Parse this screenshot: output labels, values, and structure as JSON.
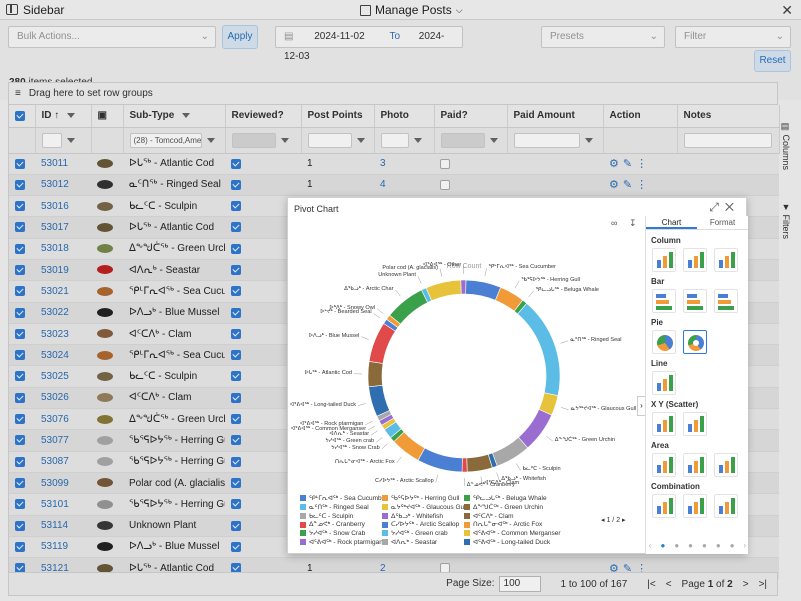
{
  "topbar": {
    "sidebar_label": "Sidebar",
    "title": "Manage Posts"
  },
  "toolbar": {
    "bulk_placeholder": "Bulk Actions...",
    "apply_label": "Apply",
    "date_from": "2024-11-02",
    "date_to_label": "To",
    "date_to": "2024-12-03",
    "presets_placeholder": "Presets",
    "filter_placeholder": "Filter",
    "reset_label": "Reset",
    "count_number": "280",
    "count_text": "items selected"
  },
  "grid": {
    "group_hint": "Drag here to set row groups",
    "headers": {
      "id": "ID",
      "subtype": "Sub-Type",
      "reviewed": "Reviewed?",
      "points": "Post Points",
      "photo": "Photo",
      "paid": "Paid?",
      "amount": "Paid Amount",
      "action": "Action",
      "notes": "Notes"
    },
    "subtype_filter": "(28) - Tomcod,Americ",
    "rows": [
      {
        "id": "53011",
        "subtype": "ᐅᒐᖅ - Atlantic Cod",
        "points": "1",
        "photo": "3",
        "paid": false,
        "action": true,
        "color": "#6b5a3a"
      },
      {
        "id": "53012",
        "subtype": "ᓇᑦᑎᖅ - Ringed Seal",
        "points": "1",
        "photo": "4",
        "paid": false,
        "action": true,
        "color": "#333333"
      },
      {
        "id": "53016",
        "subtype": "ᑲᓚᑦᑕ - Sculpin",
        "points": "",
        "photo": "",
        "paid": false,
        "action": false,
        "color": "#7a6a4a"
      },
      {
        "id": "53017",
        "subtype": "ᐅᒐᖅ - Atlantic Cod",
        "points": "",
        "photo": "",
        "paid": false,
        "action": false,
        "color": "#6b5a3a"
      },
      {
        "id": "53018",
        "subtype": "ᐃᖕᖑᑖᖅ - Green Urchin",
        "points": "",
        "photo": "",
        "paid": false,
        "action": false,
        "color": "#7a8a4a"
      },
      {
        "id": "53019",
        "subtype": "ᐊᐱᕆᒃ - Seastar",
        "points": "",
        "photo": "",
        "paid": false,
        "action": false,
        "color": "#c02020"
      },
      {
        "id": "53021",
        "subtype": "ᕿᒻᒥᕆᐊᖅ - Sea Cucumber",
        "points": "",
        "photo": "",
        "paid": false,
        "action": false,
        "color": "#b06a30"
      },
      {
        "id": "53022",
        "subtype": "ᐅᐱᓗᒃ - Blue Mussel",
        "points": "",
        "photo": "",
        "paid": false,
        "action": false,
        "color": "#222222"
      },
      {
        "id": "53023",
        "subtype": "ᐊᑦᑕᐱᒃ - Clam",
        "points": "",
        "photo": "",
        "paid": false,
        "action": false,
        "color": "#8a6040"
      },
      {
        "id": "53024",
        "subtype": "ᕿᒻᒥᕆᐊᖅ - Sea Cucumber",
        "points": "",
        "photo": "",
        "paid": false,
        "action": false,
        "color": "#b06a30"
      },
      {
        "id": "53025",
        "subtype": "ᑲᓚᑦᑕ - Sculpin",
        "points": "",
        "photo": "",
        "paid": false,
        "action": false,
        "color": "#7a6a4a"
      },
      {
        "id": "53026",
        "subtype": "ᐊᑦᑕᐱᒃ - Clam",
        "points": "",
        "photo": "",
        "paid": false,
        "action": false,
        "color": "#9a8060"
      },
      {
        "id": "53076",
        "subtype": "ᐃᖕᖑᑖᖅ - Green Urchin",
        "points": "",
        "photo": "",
        "paid": false,
        "action": false,
        "color": "#8a7a3a"
      },
      {
        "id": "53077",
        "subtype": "ᖃᕐᕋᐅᔭᖅ - Herring Gull",
        "points": "",
        "photo": "",
        "paid": false,
        "action": false,
        "color": "#aaaaaa"
      },
      {
        "id": "53087",
        "subtype": "ᖃᕐᕋᐅᔭᖅ - Herring Gull",
        "points": "",
        "photo": "",
        "paid": false,
        "action": false,
        "color": "#aaaaaa"
      },
      {
        "id": "53099",
        "subtype": "Polar cod (A. glacialis)",
        "points": "",
        "photo": "",
        "paid": false,
        "action": false,
        "color": "#7a5a3a"
      },
      {
        "id": "53101",
        "subtype": "ᖃᕐᕋᐅᔭᖅ - Herring Gull",
        "points": "",
        "photo": "",
        "paid": false,
        "action": false,
        "color": "#999999"
      },
      {
        "id": "53114",
        "subtype": "Unknown Plant",
        "points": "",
        "photo": "",
        "paid": false,
        "action": false,
        "color": "#3a3a3a"
      },
      {
        "id": "53119",
        "subtype": "ᐅᐱᓗᒃ - Blue Mussel",
        "points": "",
        "photo": "",
        "paid": false,
        "action": false,
        "color": "#222222"
      },
      {
        "id": "53121",
        "subtype": "ᐅᒐᖅ - Atlantic Cod",
        "points": "1",
        "photo": "2",
        "paid": false,
        "action": true,
        "color": "#6b5a3a"
      }
    ]
  },
  "side_tabs": {
    "columns": "Columns",
    "filters": "Filters"
  },
  "footer": {
    "page_size_label": "Page Size:",
    "page_size": "100",
    "range": "1 to 100 of 167",
    "page_text": "Page",
    "page_num": "1",
    "of_text": "of",
    "page_total": "2"
  },
  "chart": {
    "window_title": "Pivot Chart",
    "pager": "1 / 2",
    "panel_tabs": [
      "Chart",
      "Format"
    ],
    "sections": [
      "Column",
      "Bar",
      "Pie",
      "Line",
      "X Y (Scatter)",
      "Area",
      "Combination"
    ],
    "chart_data": {
      "type": "pie",
      "title": "Row Count",
      "slices": [
        {
          "name": "ᕿᒻᒥᕆᐊᖅ - Sea Cucumber",
          "value": 7,
          "color": "#4a7fd4"
        },
        {
          "name": "ᖃᕐᕋᐅᔭᖅ - Herring Gull",
          "value": 5,
          "color": "#f19a38"
        },
        {
          "name": "ᕿᓚᓗᒐᖅ - Beluga Whale",
          "value": 1,
          "color": "#3aa04a"
        },
        {
          "name": "ᓇᑦᑎᖅ - Ringed Seal",
          "value": 20,
          "color": "#5bbde6"
        },
        {
          "name": "ᓇᔭᖅᔪᐊᖅ - Glaucous Gull",
          "value": 4,
          "color": "#e6c33a"
        },
        {
          "name": "ᐃᖕᖑᑖᖅ - Green Urchin",
          "value": 8,
          "color": "#9a6ed0"
        },
        {
          "name": "ᑲᓚᑦᑕ - Sculpin",
          "value": 7,
          "color": "#a8a8a8"
        },
        {
          "name": "ᐃᖃᓗᒃ - Whitefish",
          "value": 1,
          "color": "#2f6fb0"
        },
        {
          "name": "ᐊᑦᑕᐱᒃ - Clam",
          "value": 5,
          "color": "#8a6a3a"
        },
        {
          "name": "ᐃᓐᓄᕙᒃ - Cranberry",
          "value": 1,
          "color": "#e04a4a"
        },
        {
          "name": "ᑕᓯᐅᔭᖅ - Arctic Scallop",
          "value": 9,
          "color": "#4a7fd4"
        },
        {
          "name": "ᑎᕆᒐᓐᓂᐊᖅ - Arctic Fox",
          "value": 6,
          "color": "#f19a38"
        },
        {
          "name": "ᔭᓯᐊᖅ - Snow Crab",
          "value": 1,
          "color": "#3aa04a"
        },
        {
          "name": "ᔭᓯᐊᖅ - Green crab",
          "value": 2,
          "color": "#5bbde6"
        },
        {
          "name": "ᐊᐱᕆᒃ - Seastar",
          "value": 1,
          "color": "#e6c33a"
        },
        {
          "name": "ᐊᕐᕕᐊᖅ - Common Merganser",
          "value": 1,
          "color": "#9a6ed0"
        },
        {
          "name": "ᐊᕐᕕᐊᖅ - Rock ptarmigan",
          "value": 1,
          "color": "#a8a8a8"
        },
        {
          "name": "ᐊᕐᕕᐊᖅ - Long-tailed Duck",
          "value": 6,
          "color": "#2f6fb0"
        },
        {
          "name": "ᐅᒐᖅ - Atlantic Cod",
          "value": 5,
          "color": "#8a6a3a"
        },
        {
          "name": "ᐅᐱᓗᒃ - Blue Mussel",
          "value": 8,
          "color": "#e04a4a"
        },
        {
          "name": "ᐅᒡᔪᒃ - Bearded Seal",
          "value": 1,
          "color": "#4a7fd4"
        },
        {
          "name": "ᐅᒃᐱᒃ - Snowy Owl",
          "value": 1,
          "color": "#f19a38"
        },
        {
          "name": "ᐃᖃᓗᒃ - Arctic Char",
          "value": 8,
          "color": "#3aa04a"
        },
        {
          "name": "Unknown Plant",
          "value": 1,
          "color": "#5bbde6"
        },
        {
          "name": "Polar cod (A. glacialis)",
          "value": 7,
          "color": "#e6c33a"
        },
        {
          "name": "ᐊᕐᕕᐊᖅ - Other",
          "value": 1,
          "color": "#9a6ed0"
        }
      ]
    },
    "legend": [
      "ᕿᒻᒥᕆᐊᖅ - Sea Cucumber",
      "ᖃᕐᕋᐅᔭᖅ - Herring Gull",
      "ᕿᓚᓗᒐᖅ - Beluga Whale",
      "ᓇᑦᑎᖅ - Ringed Seal",
      "ᓇᔭᖅᔪᐊᖅ - Glaucous Gull",
      "ᐃᖕᖑᑖᖅ - Green Urchin",
      "ᑲᓚᑦᑕ - Sculpin",
      "ᐃᖃᓗᒃ - Whitefish",
      "ᐊᑦᑕᐱᒃ - Clam",
      "ᐃᓐᓄᕙᒃ - Cranberry",
      "ᑕᓯᐅᔭᖅ - Arctic Scallop",
      "ᑎᕆᒐᓐᓂᐊᖅ - Arctic Fox",
      "ᔭᓯᐊᖅ - Snow Crab",
      "ᔭᓯᐊᖅ - Green crab",
      "ᐊᕐᕕᐊᖅ - Common Merganser",
      "ᐊᕐᕕᐊᖅ - Rock ptarmigan",
      "ᐊᐱᕆᒃ - Seastar",
      "ᐊᕐᕕᐊᖅ - Long-tailed Duck"
    ],
    "legend_colors": [
      "#4a7fd4",
      "#f19a38",
      "#3aa04a",
      "#5bbde6",
      "#e6c33a",
      "#8a6a3a",
      "#a8a8a8",
      "#9a6ed0",
      "#8a6a3a",
      "#e04a4a",
      "#4a7fd4",
      "#f19a38",
      "#3aa04a",
      "#5bbde6",
      "#e6c33a",
      "#9a6ed0",
      "#a8a8a8",
      "#2f6fb0"
    ]
  }
}
